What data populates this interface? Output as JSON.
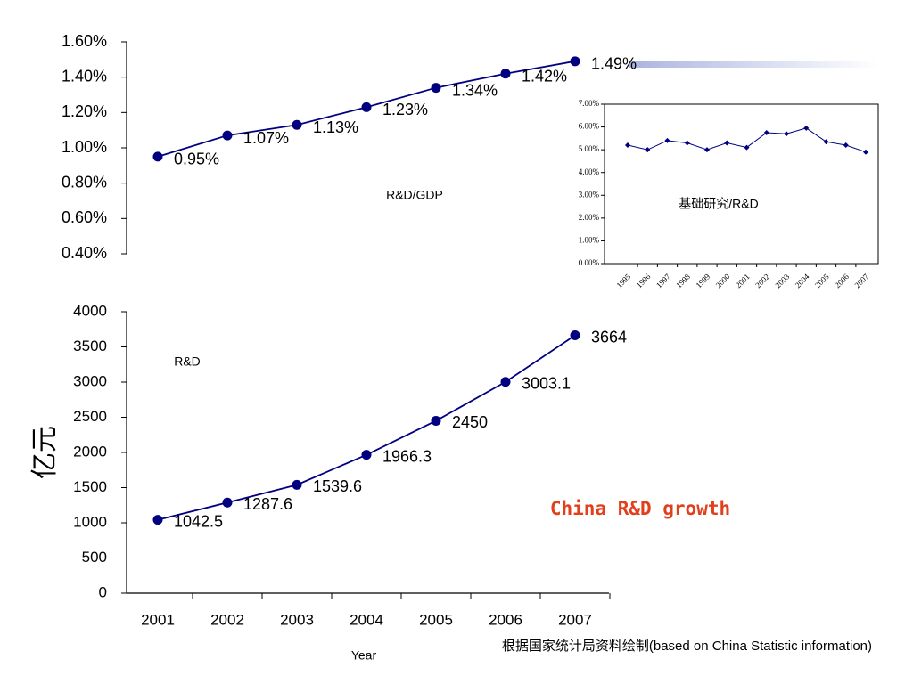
{
  "chart_data": [
    {
      "type": "line",
      "annotation": "R&D/GDP",
      "color": "#000080",
      "values": [
        0.95,
        1.07,
        1.13,
        1.23,
        1.34,
        1.42,
        1.49
      ],
      "value_labels": [
        "0.95%",
        "1.07%",
        "1.13%",
        "1.23%",
        "1.34%",
        "1.42%",
        "1.49%"
      ],
      "ylim": [
        0.4,
        1.6
      ],
      "yticks": [
        {
          "value": 0.4,
          "label": "0.40%"
        },
        {
          "value": 0.6,
          "label": "0.60%"
        },
        {
          "value": 0.8,
          "label": "0.80%"
        },
        {
          "value": 1.0,
          "label": "1.00%"
        },
        {
          "value": 1.2,
          "label": "1.20%"
        },
        {
          "value": 1.4,
          "label": "1.40%"
        },
        {
          "value": 1.6,
          "label": "1.60%"
        }
      ]
    },
    {
      "type": "line",
      "annotation": "R&D",
      "x_label": "Year",
      "y_label": "亿元",
      "color": "#000080",
      "categories": [
        "2001",
        "2002",
        "2003",
        "2004",
        "2005",
        "2006",
        "2007"
      ],
      "values": [
        1042.5,
        1287.6,
        1539.6,
        1966.3,
        2450,
        3003.1,
        3664
      ],
      "ylim": [
        0,
        4000
      ],
      "yticks": [
        0,
        500,
        1000,
        1500,
        2000,
        2500,
        3000,
        3500,
        4000
      ]
    },
    {
      "type": "line",
      "annotation": "基础研究/R&D",
      "color": "#000080",
      "categories": [
        "1995",
        "1996",
        "1997",
        "1998",
        "1999",
        "2000",
        "2001",
        "2002",
        "2003",
        "2004",
        "2005",
        "2006",
        "2007"
      ],
      "values": [
        5.2,
        5.0,
        5.4,
        5.3,
        5.0,
        5.3,
        5.1,
        5.75,
        5.7,
        5.95,
        5.35,
        5.2,
        4.9
      ],
      "ylim": [
        0,
        7
      ],
      "yticks": [
        {
          "value": 0,
          "label": "0.00%"
        },
        {
          "value": 1,
          "label": "1.00%"
        },
        {
          "value": 2,
          "label": "2.00%"
        },
        {
          "value": 3,
          "label": "3.00%"
        },
        {
          "value": 4,
          "label": "4.00%"
        },
        {
          "value": 5,
          "label": "5.00%"
        },
        {
          "value": 6,
          "label": "6.00%"
        },
        {
          "value": 7,
          "label": "7.00%"
        }
      ]
    }
  ],
  "title": "China R&D growth",
  "source": "根据国家统计局资料绘制(based on China Statistic information)"
}
